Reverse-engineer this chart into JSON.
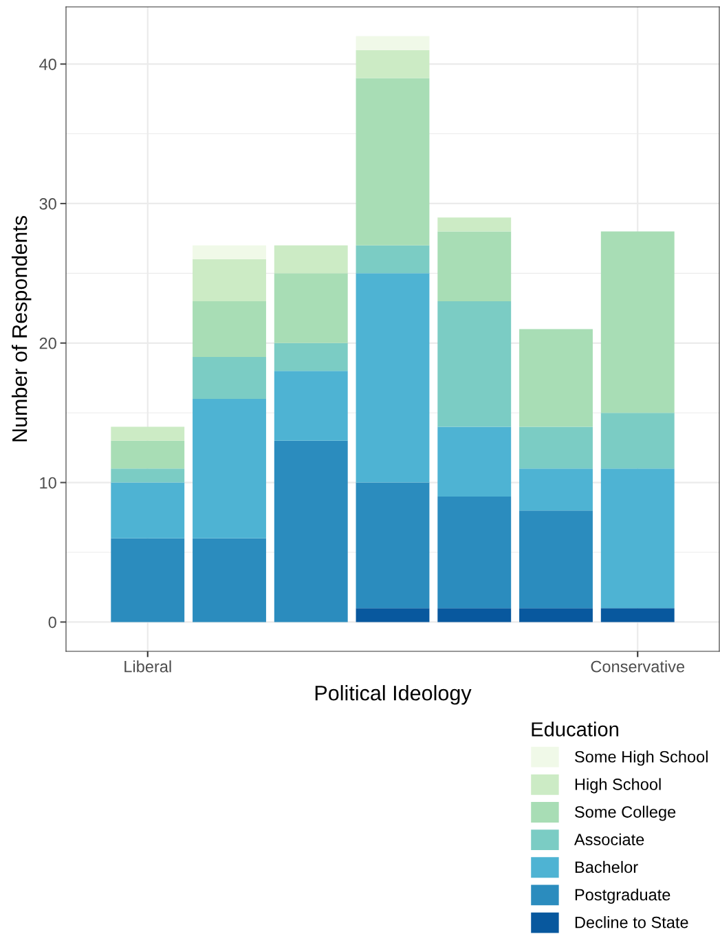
{
  "chart_data": {
    "type": "bar",
    "stacked": true,
    "xlabel": "Political Ideology",
    "ylabel": "Number of Respondents",
    "legend_title": "Education",
    "categories": [
      "Liberal",
      null,
      null,
      null,
      null,
      null,
      "Conservative"
    ],
    "series": [
      {
        "name": "Decline to State",
        "color": "#08589e",
        "values": [
          0,
          0,
          0,
          1,
          1,
          1,
          1
        ]
      },
      {
        "name": "Postgraduate",
        "color": "#2b8cbe",
        "values": [
          6,
          6,
          13,
          9,
          8,
          7,
          0
        ]
      },
      {
        "name": "Bachelor",
        "color": "#4eb3d3",
        "values": [
          4,
          10,
          5,
          15,
          5,
          3,
          10
        ]
      },
      {
        "name": "Associate",
        "color": "#7bccc4",
        "values": [
          1,
          3,
          2,
          2,
          9,
          3,
          4
        ]
      },
      {
        "name": "Some College",
        "color": "#a8ddb5",
        "values": [
          2,
          4,
          5,
          12,
          5,
          7,
          13
        ]
      },
      {
        "name": "High School",
        "color": "#ccebc5",
        "values": [
          1,
          3,
          2,
          2,
          1,
          0,
          0
        ]
      },
      {
        "name": "Some High School",
        "color": "#f0f9e8",
        "values": [
          0,
          1,
          0,
          1,
          0,
          0,
          0
        ]
      }
    ],
    "ylim": [
      -2.1,
      44.1
    ],
    "yticks": [
      0,
      10,
      20,
      30,
      40
    ],
    "grid": true,
    "legend": "bottom right"
  }
}
